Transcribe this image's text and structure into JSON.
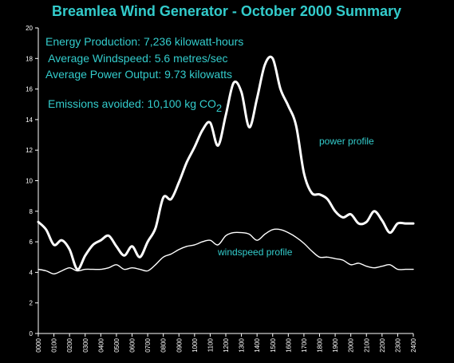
{
  "chart_data": {
    "type": "line",
    "title": "Breamlea Wind Generator - October 2000 Summary",
    "ylim": [
      0,
      20
    ],
    "yticks": [
      0,
      2,
      4,
      6,
      8,
      10,
      12,
      14,
      16,
      18,
      20
    ],
    "xlim": [
      0,
      24
    ],
    "xticks": [
      "0000",
      "0100",
      "0200",
      "0300",
      "0400",
      "0500",
      "0600",
      "0700",
      "0800",
      "0900",
      "1000",
      "1100",
      "1200",
      "1300",
      "1400",
      "1500",
      "1600",
      "1700",
      "1800",
      "1900",
      "2000",
      "2100",
      "2200",
      "2300",
      "2400"
    ],
    "annotations": [
      "Energy Production: 7,236 kilowatt-hours",
      " Average Windspeed: 5.6 metres/sec",
      "Average Power Output: 9.73 kilowatts"
    ],
    "emissions": {
      "text": "Emissions avoided: 10,100 kg CO",
      "subscript": "2"
    },
    "series": [
      {
        "name": "power profile",
        "x": [
          0,
          0.5,
          1,
          1.5,
          2,
          2.5,
          3,
          3.5,
          4,
          4.5,
          5,
          5.5,
          6,
          6.5,
          7,
          7.5,
          8,
          8.5,
          9,
          9.5,
          10,
          10.5,
          11,
          11.5,
          12,
          12.5,
          13,
          13.5,
          14,
          14.5,
          15,
          15.5,
          16,
          16.5,
          17,
          17.5,
          18,
          18.5,
          19,
          19.5,
          20,
          20.5,
          21,
          21.5,
          22,
          22.5,
          23,
          23.5,
          24
        ],
        "y": [
          7.3,
          6.8,
          5.8,
          6.1,
          5.5,
          4.2,
          5.1,
          5.8,
          6.1,
          6.4,
          5.7,
          5.1,
          5.7,
          5.0,
          6.0,
          6.9,
          8.9,
          8.8,
          9.9,
          11.2,
          12.2,
          13.3,
          13.8,
          12.3,
          14.3,
          16.4,
          15.8,
          13.5,
          15.4,
          17.6,
          18.0,
          16.0,
          14.9,
          13.6,
          10.5,
          9.2,
          9.1,
          8.8,
          8.0,
          7.6,
          7.8,
          7.2,
          7.3,
          8.0,
          7.4,
          6.6,
          7.2,
          7.2,
          7.2
        ]
      },
      {
        "name": "windspeed profile",
        "x": [
          0,
          0.5,
          1,
          1.5,
          2,
          2.5,
          3,
          3.5,
          4,
          4.5,
          5,
          5.5,
          6,
          6.5,
          7,
          7.5,
          8,
          8.5,
          9,
          9.5,
          10,
          10.5,
          11,
          11.5,
          12,
          12.5,
          13,
          13.5,
          14,
          14.5,
          15,
          15.5,
          16,
          16.5,
          17,
          17.5,
          18,
          18.5,
          19,
          19.5,
          20,
          20.5,
          21,
          21.5,
          22,
          22.5,
          23,
          23.5,
          24
        ],
        "y": [
          4.2,
          4.1,
          3.9,
          4.1,
          4.3,
          4.1,
          4.2,
          4.2,
          4.2,
          4.3,
          4.5,
          4.2,
          4.3,
          4.2,
          4.1,
          4.5,
          5.0,
          5.2,
          5.5,
          5.7,
          5.8,
          6.0,
          6.1,
          5.8,
          6.4,
          6.6,
          6.6,
          6.5,
          6.1,
          6.5,
          6.8,
          6.8,
          6.6,
          6.3,
          5.9,
          5.4,
          5.0,
          5.0,
          4.9,
          4.8,
          4.5,
          4.6,
          4.4,
          4.3,
          4.4,
          4.5,
          4.2,
          4.2,
          4.2
        ]
      }
    ]
  }
}
